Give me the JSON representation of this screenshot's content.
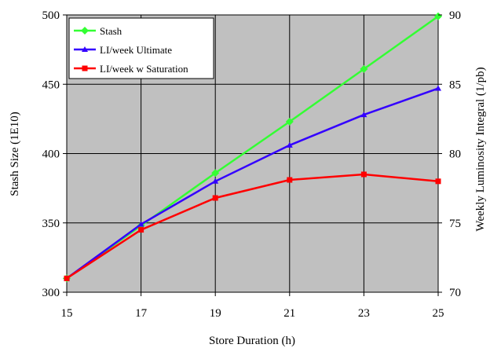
{
  "chart_data": {
    "type": "line",
    "title": "",
    "x": [
      15,
      17,
      19,
      21,
      23,
      25
    ],
    "xlabel": "Store Duration (h)",
    "xlim": [
      15,
      25
    ],
    "xticks": [
      15,
      17,
      19,
      21,
      23,
      25
    ],
    "ylabel": "Stash Size (1E10)",
    "ylim": [
      300,
      500
    ],
    "yticks": [
      300,
      350,
      400,
      450,
      500
    ],
    "y2label": "Weekly Luminosity Integral (1/pb)",
    "y2lim": [
      70,
      90
    ],
    "y2ticks": [
      70,
      75,
      80,
      85,
      90
    ],
    "grid": true,
    "legend_position": "top-left",
    "plot_background": "#c0c0c0",
    "series": [
      {
        "name": "Stash",
        "axis": "left",
        "color": "#33ff33",
        "marker": "diamond",
        "values": [
          310,
          348,
          386,
          423,
          461,
          499
        ]
      },
      {
        "name": "LI/week Ultimate",
        "axis": "right",
        "color": "#3300ff",
        "marker": "triangle",
        "values": [
          71.0,
          74.9,
          78.0,
          80.6,
          82.8,
          84.7
        ]
      },
      {
        "name": "LI/week w Saturation",
        "axis": "right",
        "color": "#ff0000",
        "marker": "square",
        "values": [
          71.0,
          74.5,
          76.8,
          78.1,
          78.5,
          78.0
        ]
      }
    ]
  }
}
